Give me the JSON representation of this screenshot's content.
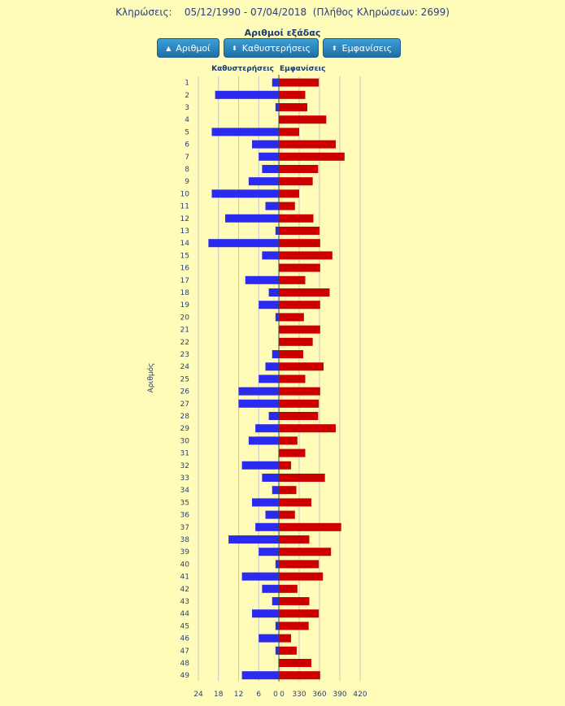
{
  "header": {
    "label": "Κληρώσεις:",
    "date_range": "05/12/1990 - 07/04/2018",
    "draw_count": "(Πλήθος Κληρώσεων: 2699)"
  },
  "section_title": "Αριθμοί εξάδας",
  "buttons": [
    {
      "label": "Αριθμοί",
      "icon": "arrow-up-icon"
    },
    {
      "label": "Καθυστερήσεις",
      "icon": "sort-icon"
    },
    {
      "label": "Εμφανίσεις",
      "icon": "sort-icon"
    }
  ],
  "colors": {
    "delay": "#2b2bf0",
    "appear": "#cc0000",
    "grid": "#c8c8c8",
    "axis": "#444444",
    "background": "#fffbb8"
  },
  "chart_data": {
    "type": "bar",
    "orientation": "horizontal",
    "y_axis_title": "Αριθμός",
    "left_header": "Καθυστερήσεις",
    "right_header": "Εμφανίσεις",
    "categories": [
      "1",
      "2",
      "3",
      "4",
      "5",
      "6",
      "7",
      "8",
      "9",
      "10",
      "11",
      "12",
      "13",
      "14",
      "15",
      "16",
      "17",
      "18",
      "19",
      "20",
      "21",
      "22",
      "23",
      "24",
      "25",
      "26",
      "27",
      "28",
      "29",
      "30",
      "31",
      "32",
      "33",
      "34",
      "35",
      "36",
      "37",
      "38",
      "39",
      "40",
      "41",
      "42",
      "43",
      "44",
      "45",
      "46",
      "47",
      "48",
      "49"
    ],
    "left_axis": {
      "ticks": [
        "24",
        "18",
        "12",
        "6",
        "0"
      ],
      "max": 24
    },
    "right_axis": {
      "ticks": [
        "0",
        "330",
        "360",
        "390",
        "420"
      ],
      "break_at": 300
    },
    "series": [
      {
        "name": "Καθυστερήσεις",
        "values": [
          2,
          19,
          1,
          0,
          20,
          8,
          6,
          5,
          9,
          20,
          4,
          16,
          1,
          21,
          5,
          0,
          10,
          3,
          6,
          1,
          0,
          0,
          2,
          4,
          6,
          12,
          12,
          3,
          7,
          9,
          0,
          11,
          5,
          2,
          8,
          4,
          7,
          15,
          6,
          1,
          11,
          5,
          2,
          8,
          1,
          6,
          1,
          0,
          11
        ]
      },
      {
        "name": "Εμφανίσεις",
        "values": [
          359,
          339,
          342,
          370,
          330,
          384,
          397,
          358,
          350,
          330,
          318,
          351,
          360,
          361,
          379,
          361,
          339,
          375,
          361,
          337,
          361,
          350,
          336,
          366,
          339,
          361,
          359,
          358,
          384,
          325,
          339,
          307,
          368,
          322,
          348,
          318,
          392,
          345,
          377,
          359,
          365,
          325,
          345,
          359,
          344,
          307,
          323,
          348,
          361
        ]
      }
    ]
  }
}
